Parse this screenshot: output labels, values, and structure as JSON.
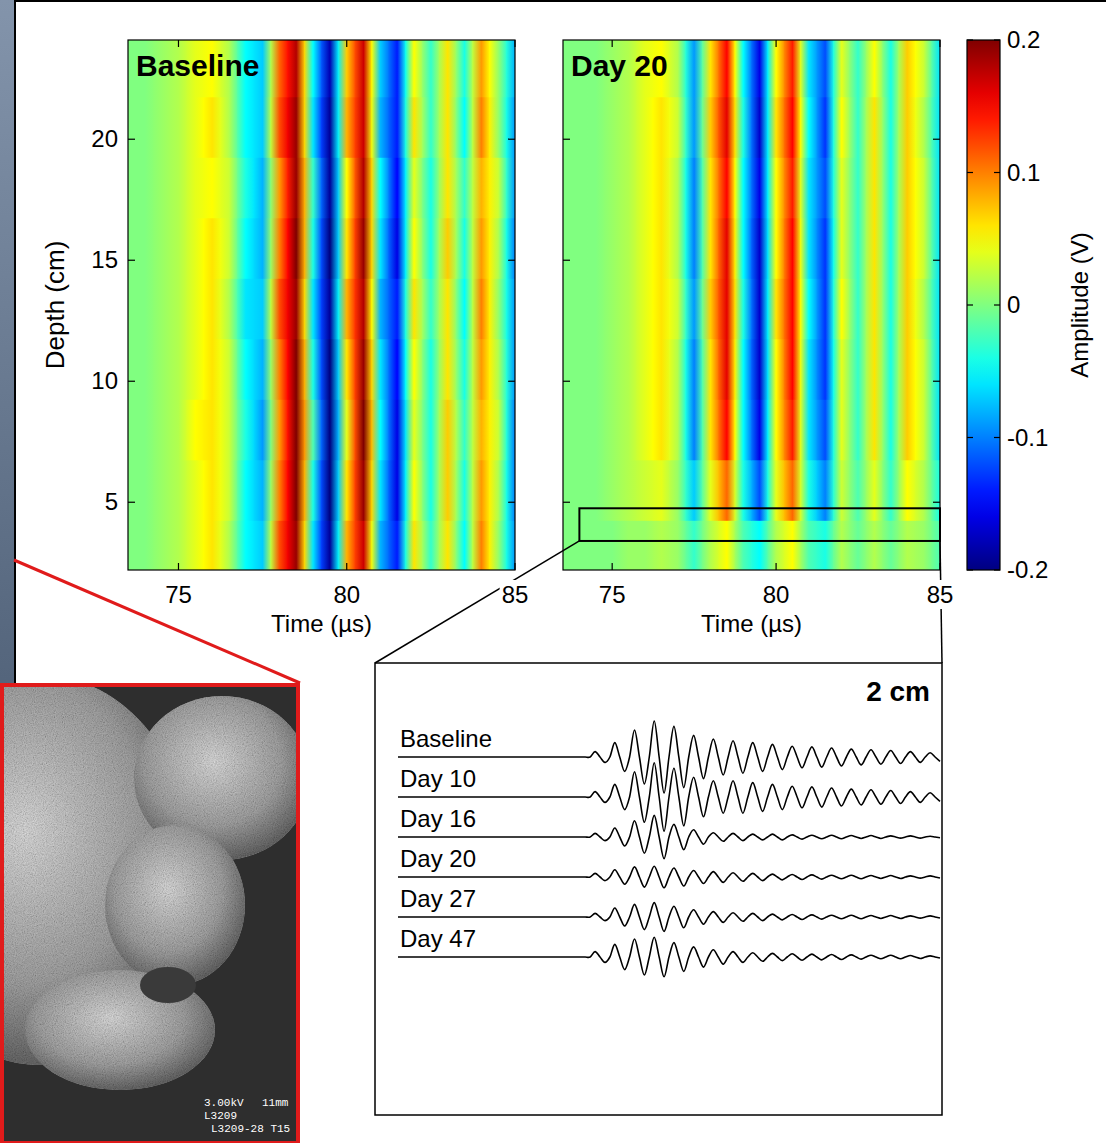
{
  "chart_data": [
    {
      "type": "heatmap",
      "title": "Baseline",
      "xlabel": "Time (µs)",
      "ylabel": "Depth (cm)",
      "x": [
        73.5,
        74,
        74.5,
        75,
        75.5,
        76,
        76.5,
        77,
        77.5,
        78,
        78.5,
        79,
        79.5,
        80,
        80.5,
        81,
        81.5,
        82,
        82.5,
        83,
        83.5,
        84,
        84.5,
        85
      ],
      "y": [
        3,
        5.5,
        8,
        10.5,
        13,
        15.5,
        18,
        20.5,
        23
      ],
      "cells": [
        [
          0,
          0,
          0.01,
          0.02,
          0.04,
          0.06,
          0.02,
          -0.05,
          -0.07,
          0.12,
          0.19,
          -0.06,
          -0.19,
          0.08,
          0.17,
          -0.08,
          -0.14,
          0.06,
          -0.03,
          0.06,
          -0.05,
          0.1,
          0.01,
          -0.09
        ],
        [
          0,
          0,
          0.01,
          0.02,
          0.04,
          0.06,
          0.03,
          -0.05,
          -0.08,
          0.1,
          0.2,
          -0.04,
          -0.2,
          0.06,
          0.19,
          -0.06,
          -0.16,
          0.05,
          -0.04,
          0.07,
          -0.04,
          0.09,
          0.02,
          -0.1
        ],
        [
          0,
          0,
          0.01,
          0.02,
          0.05,
          0.06,
          0.03,
          -0.04,
          -0.09,
          0.09,
          0.2,
          -0.02,
          -0.2,
          0.04,
          0.2,
          -0.05,
          -0.16,
          0.04,
          -0.04,
          0.07,
          -0.03,
          0.08,
          0.03,
          -0.1
        ],
        [
          0,
          0,
          0.01,
          0.02,
          0.04,
          0.06,
          0.03,
          -0.05,
          -0.08,
          0.1,
          0.2,
          -0.04,
          -0.2,
          0.06,
          0.19,
          -0.06,
          -0.15,
          0.05,
          -0.04,
          0.06,
          -0.04,
          0.09,
          0.02,
          -0.09
        ],
        [
          0,
          0,
          0.01,
          0.02,
          0.04,
          0.06,
          0.02,
          -0.06,
          -0.07,
          0.12,
          0.19,
          -0.06,
          -0.19,
          0.08,
          0.18,
          -0.08,
          -0.14,
          0.06,
          -0.03,
          0.06,
          -0.05,
          0.1,
          0.01,
          -0.09
        ],
        [
          0,
          0,
          0.01,
          0.02,
          0.04,
          0.06,
          0.03,
          -0.05,
          -0.08,
          0.1,
          0.2,
          -0.04,
          -0.2,
          0.06,
          0.19,
          -0.06,
          -0.16,
          0.05,
          -0.04,
          0.07,
          -0.04,
          0.09,
          0.02,
          -0.1
        ],
        [
          0,
          0,
          0.01,
          0.02,
          0.04,
          0.05,
          0.03,
          -0.04,
          -0.08,
          0.09,
          0.19,
          -0.03,
          -0.19,
          0.05,
          0.18,
          -0.05,
          -0.15,
          0.04,
          -0.04,
          0.06,
          -0.03,
          0.08,
          0.03,
          -0.09
        ],
        [
          0,
          0,
          0.01,
          0.02,
          0.04,
          0.06,
          0.02,
          -0.05,
          -0.07,
          0.12,
          0.19,
          -0.06,
          -0.19,
          0.08,
          0.17,
          -0.08,
          -0.14,
          0.06,
          -0.03,
          0.06,
          -0.05,
          0.1,
          0.01,
          -0.09
        ],
        [
          0,
          0,
          0.01,
          0.02,
          0.04,
          0.05,
          0.02,
          -0.05,
          -0.07,
          0.11,
          0.18,
          -0.05,
          -0.18,
          0.07,
          0.17,
          -0.07,
          -0.14,
          0.05,
          -0.03,
          0.06,
          -0.04,
          0.09,
          0.01,
          -0.08
        ]
      ],
      "xlim": [
        73.5,
        85
      ],
      "ylim": [
        2.2,
        24.1
      ],
      "xticks": [
        75,
        80,
        85
      ],
      "yticks": [
        5,
        10,
        15,
        20
      ]
    },
    {
      "type": "heatmap",
      "title": "Day 20",
      "xlabel": "Time (µs)",
      "x": [
        73.5,
        74,
        74.5,
        75,
        75.5,
        76,
        76.5,
        77,
        77.5,
        78,
        78.5,
        79,
        79.5,
        80,
        80.5,
        81,
        81.5,
        82,
        82.5,
        83,
        83.5,
        84,
        84.5,
        85
      ],
      "y": [
        3,
        5.5,
        8,
        10.5,
        13,
        15.5,
        18,
        20.5,
        23
      ],
      "cells": [
        [
          0,
          0,
          0,
          0,
          0.01,
          0.01,
          0.02,
          0.01,
          -0.03,
          0.02,
          0.05,
          -0.02,
          -0.05,
          0.02,
          0.05,
          -0.02,
          -0.04,
          0.02,
          -0.01,
          0.02,
          -0.01,
          0.02,
          0.01,
          -0.02
        ],
        [
          0,
          0,
          0,
          0.01,
          0.02,
          0.03,
          0.04,
          0.01,
          -0.07,
          0.04,
          0.11,
          -0.04,
          -0.12,
          0.04,
          0.11,
          -0.04,
          -0.1,
          0.03,
          -0.02,
          0.04,
          -0.03,
          0.05,
          0.02,
          -0.04
        ],
        [
          0,
          0,
          0,
          0.01,
          0.02,
          0.04,
          0.06,
          0.02,
          -0.1,
          0.06,
          0.15,
          -0.05,
          -0.16,
          0.05,
          0.14,
          -0.06,
          -0.12,
          0.04,
          -0.03,
          0.06,
          -0.04,
          0.07,
          0.03,
          -0.06
        ],
        [
          0,
          0,
          0,
          0.01,
          0.02,
          0.04,
          0.06,
          0.02,
          -0.1,
          0.06,
          0.16,
          -0.05,
          -0.17,
          0.05,
          0.15,
          -0.06,
          -0.13,
          0.04,
          -0.03,
          0.06,
          -0.04,
          0.07,
          0.03,
          -0.06
        ],
        [
          0,
          0,
          0,
          0.01,
          0.02,
          0.04,
          0.06,
          0.03,
          -0.09,
          0.07,
          0.16,
          -0.04,
          -0.17,
          0.06,
          0.15,
          -0.05,
          -0.13,
          0.05,
          -0.03,
          0.06,
          -0.04,
          0.07,
          0.02,
          -0.06
        ],
        [
          0,
          0,
          0,
          0.01,
          0.02,
          0.04,
          0.06,
          0.02,
          -0.1,
          0.06,
          0.16,
          -0.05,
          -0.17,
          0.05,
          0.15,
          -0.06,
          -0.13,
          0.04,
          -0.03,
          0.06,
          -0.04,
          0.07,
          0.03,
          -0.06
        ],
        [
          0,
          0,
          0,
          0.01,
          0.02,
          0.04,
          0.06,
          0.02,
          -0.1,
          0.06,
          0.15,
          -0.05,
          -0.16,
          0.05,
          0.14,
          -0.06,
          -0.12,
          0.04,
          -0.03,
          0.06,
          -0.04,
          0.07,
          0.03,
          -0.06
        ],
        [
          0,
          0,
          0,
          0.01,
          0.02,
          0.04,
          0.06,
          0.03,
          -0.09,
          0.07,
          0.16,
          -0.04,
          -0.17,
          0.06,
          0.15,
          -0.05,
          -0.13,
          0.05,
          -0.03,
          0.06,
          -0.04,
          0.07,
          0.02,
          -0.06
        ],
        [
          0,
          0,
          0,
          0.01,
          0.02,
          0.04,
          0.05,
          0.02,
          -0.09,
          0.06,
          0.15,
          -0.05,
          -0.16,
          0.05,
          0.14,
          -0.06,
          -0.12,
          0.04,
          -0.03,
          0.05,
          -0.04,
          0.07,
          0.03,
          -0.06
        ]
      ],
      "xlim": [
        73.5,
        85
      ],
      "ylim": [
        2.2,
        24.1
      ],
      "xticks": [
        75,
        80,
        85
      ],
      "yticks": [
        5,
        10,
        15,
        20
      ],
      "tick_labels": "x",
      "colorbar": {
        "label": "Amplitude (V)",
        "range": [
          -0.2,
          0.2
        ],
        "ticks": [
          0.2,
          0.1,
          0,
          -0.1,
          -0.2
        ]
      },
      "zoom_region": {
        "x": [
          74,
          85
        ],
        "y": [
          3.4,
          4.75
        ]
      }
    },
    {
      "type": "line",
      "title": "2 cm",
      "tick_labels": false,
      "xlim": [
        74,
        85
      ],
      "x": [
        74,
        77.8,
        77.9,
        78,
        78.1,
        78.2,
        78.3,
        78.4,
        78.5,
        78.6,
        78.7,
        78.8,
        78.9,
        79,
        79.1,
        79.2,
        79.3,
        79.4,
        79.5,
        79.6,
        79.7,
        79.8,
        79.9,
        80,
        80.1,
        80.2,
        80.3,
        80.4,
        80.5,
        80.6,
        80.7,
        80.8,
        80.9,
        81,
        81.1,
        81.2,
        81.3,
        81.4,
        81.5,
        81.6,
        81.7,
        81.8,
        81.9,
        82,
        82.1,
        82.2,
        82.3,
        82.4,
        82.5,
        82.6,
        82.7,
        82.8,
        82.9,
        83,
        83.1,
        83.2,
        83.3,
        83.4,
        83.5,
        83.6,
        83.7,
        83.8,
        83.9,
        84,
        84.1,
        84.2,
        84.3,
        84.4,
        84.5,
        84.6,
        84.7,
        84.8,
        84.9,
        85
      ],
      "series": [
        {
          "name": "Baseline",
          "color": "#000000",
          "values": [
            0,
            0,
            0,
            0.15,
            0,
            -0.15,
            0,
            0.4,
            0,
            -0.4,
            0,
            0.75,
            0,
            -0.75,
            0,
            1,
            0,
            -1,
            0,
            0.85,
            0,
            -0.85,
            0,
            0.6,
            0,
            -0.6,
            0,
            0.5,
            0,
            -0.5,
            0,
            0.45,
            0,
            -0.45,
            0,
            0.4,
            0,
            -0.4,
            0,
            0.35,
            0,
            -0.35,
            0,
            0.3,
            0,
            -0.3,
            0,
            0.28,
            0,
            -0.28,
            0,
            0.25,
            0,
            -0.25,
            0,
            0.22,
            0,
            -0.22,
            0,
            0.2,
            0,
            -0.2,
            0,
            0.18,
            0,
            -0.18,
            0,
            0.15,
            0,
            -0.15,
            0,
            0.12,
            0,
            -0.12
          ]
        },
        {
          "name": "Day 10",
          "color": "#000000",
          "values": [
            0,
            0,
            0,
            0.15,
            0,
            -0.15,
            0,
            0.35,
            0,
            -0.35,
            0,
            0.7,
            0,
            -0.7,
            0,
            0.95,
            0,
            -0.95,
            0,
            0.8,
            0,
            -0.8,
            0,
            0.55,
            0,
            -0.55,
            0,
            0.45,
            0,
            -0.45,
            0,
            0.45,
            0,
            -0.45,
            0,
            0.4,
            0,
            -0.4,
            0,
            0.35,
            0,
            -0.35,
            0,
            0.3,
            0,
            -0.3,
            0,
            0.28,
            0,
            -0.28,
            0,
            0.25,
            0,
            -0.25,
            0,
            0.22,
            0,
            -0.22,
            0,
            0.2,
            0,
            -0.2,
            0,
            0.18,
            0,
            -0.18,
            0,
            0.15,
            0,
            -0.15,
            0,
            0.12,
            0,
            -0.12
          ]
        },
        {
          "name": "Day 16",
          "color": "#000000",
          "values": [
            0,
            0,
            0,
            0.1,
            0,
            -0.1,
            0,
            0.25,
            0,
            -0.25,
            0,
            0.45,
            0,
            -0.45,
            0,
            0.6,
            0,
            -0.6,
            0,
            0.35,
            0,
            -0.35,
            0,
            0.2,
            0,
            -0.2,
            0,
            0.12,
            0,
            -0.12,
            0,
            0.1,
            0,
            -0.1,
            0,
            0.08,
            0,
            -0.08,
            0,
            0.08,
            0,
            -0.08,
            0,
            0.06,
            0,
            -0.06,
            0,
            0.05,
            0,
            -0.05,
            0,
            0.05,
            0,
            -0.05,
            0,
            0.04,
            0,
            -0.04,
            0,
            0.04,
            0,
            -0.04,
            0,
            0.03,
            0,
            -0.03,
            0,
            0.03,
            0,
            -0.03,
            0,
            0.02,
            0,
            -0.02
          ]
        },
        {
          "name": "Day 20",
          "color": "#000000",
          "values": [
            0,
            0,
            0,
            0.1,
            0,
            -0.1,
            0,
            0.2,
            0,
            -0.2,
            0,
            0.28,
            0,
            -0.28,
            0,
            0.3,
            0,
            -0.3,
            0,
            0.25,
            0,
            -0.25,
            0,
            0.18,
            0,
            -0.18,
            0,
            0.15,
            0,
            -0.15,
            0,
            0.12,
            0,
            -0.12,
            0,
            0.1,
            0,
            -0.1,
            0,
            0.08,
            0,
            -0.08,
            0,
            0.07,
            0,
            -0.07,
            0,
            0.06,
            0,
            -0.06,
            0,
            0.05,
            0,
            -0.05,
            0,
            0.05,
            0,
            -0.05,
            0,
            0.04,
            0,
            -0.04,
            0,
            0.04,
            0,
            -0.04,
            0,
            0.03,
            0,
            -0.03,
            0,
            0.03,
            0,
            -0.03
          ]
        },
        {
          "name": "Day 27",
          "color": "#000000",
          "values": [
            0,
            0,
            0,
            0.1,
            0,
            -0.1,
            0,
            0.25,
            0,
            -0.25,
            0,
            0.35,
            0,
            -0.35,
            0,
            0.4,
            0,
            -0.4,
            0,
            0.3,
            0,
            -0.3,
            0,
            0.2,
            0,
            -0.2,
            0,
            0.15,
            0,
            -0.15,
            0,
            0.12,
            0,
            -0.12,
            0,
            0.1,
            0,
            -0.1,
            0,
            0.08,
            0,
            -0.08,
            0,
            0.07,
            0,
            -0.07,
            0,
            0.06,
            0,
            -0.06,
            0,
            0.05,
            0,
            -0.05,
            0,
            0.05,
            0,
            -0.05,
            0,
            0.04,
            0,
            -0.04,
            0,
            0.04,
            0,
            -0.04,
            0,
            0.03,
            0,
            -0.03,
            0,
            0.03,
            0,
            -0.03
          ]
        },
        {
          "name": "Day 47",
          "color": "#000000",
          "values": [
            0,
            0,
            0,
            0.15,
            0,
            -0.15,
            0,
            0.35,
            0,
            -0.35,
            0,
            0.5,
            0,
            -0.5,
            0,
            0.55,
            0,
            -0.55,
            0,
            0.4,
            0,
            -0.4,
            0,
            0.28,
            0,
            -0.28,
            0,
            0.2,
            0,
            -0.2,
            0,
            0.15,
            0,
            -0.15,
            0,
            0.12,
            0,
            -0.12,
            0,
            0.1,
            0,
            -0.1,
            0,
            0.09,
            0,
            -0.09,
            0,
            0.08,
            0,
            -0.08,
            0,
            0.07,
            0,
            -0.07,
            0,
            0.06,
            0,
            -0.06,
            0,
            0.05,
            0,
            -0.05,
            0,
            0.05,
            0,
            -0.05,
            0,
            0.04,
            0,
            -0.04,
            0,
            0.03,
            0,
            -0.03
          ]
        }
      ]
    }
  ],
  "sem_image": {
    "labels": [
      "3.00kV",
      "11mm",
      "L3209",
      "L3209-28 T15"
    ]
  }
}
